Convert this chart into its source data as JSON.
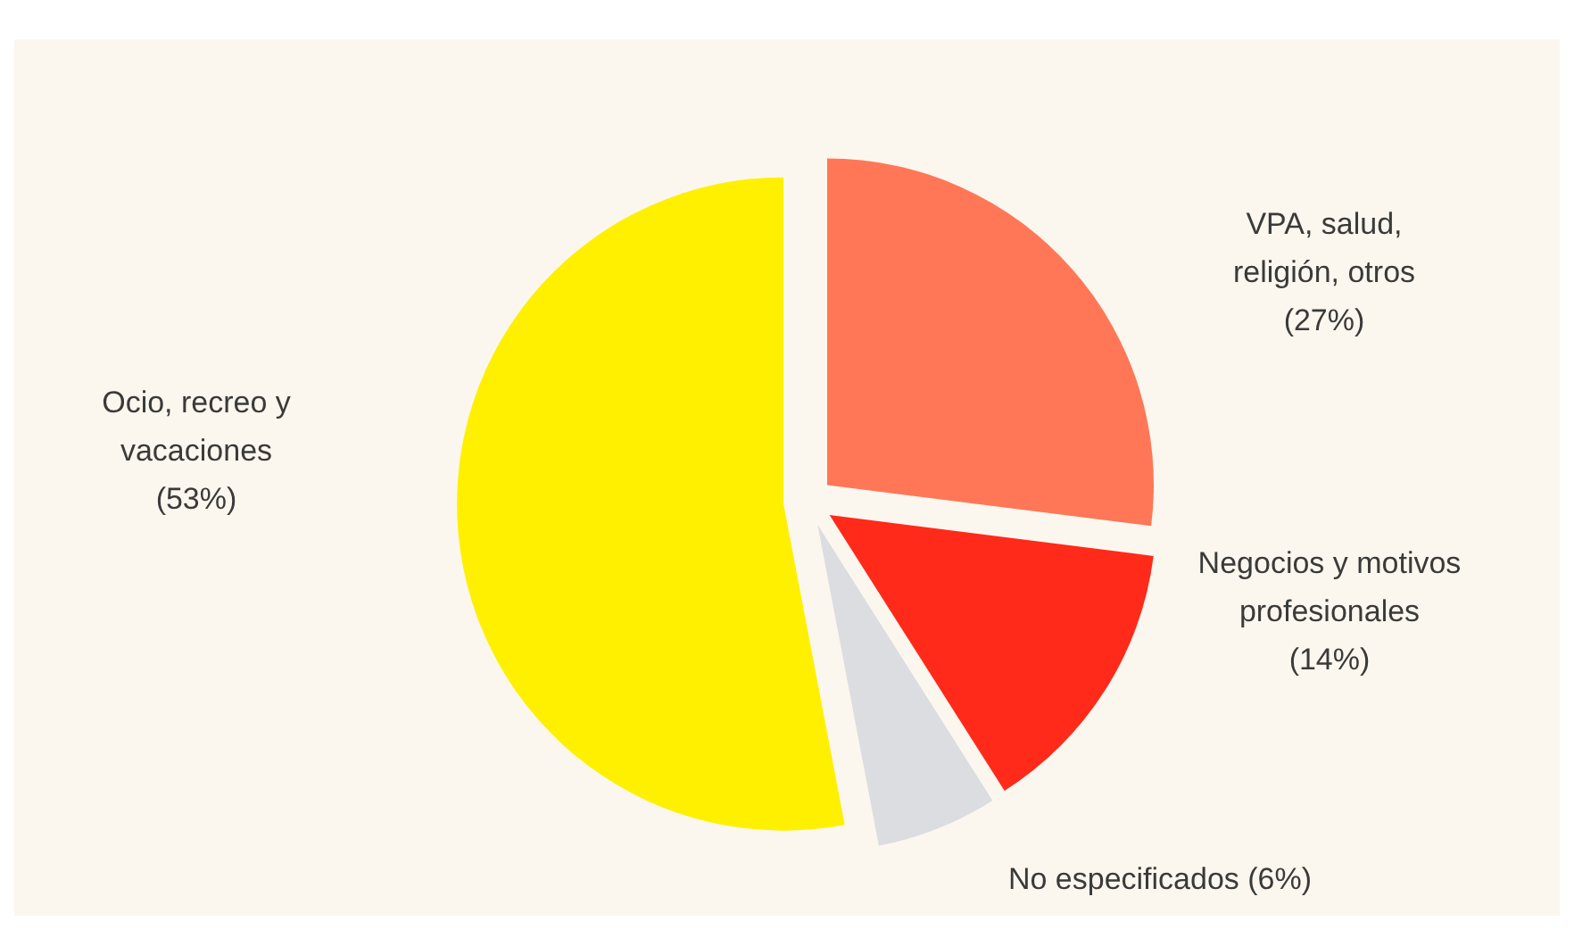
{
  "chart_data": {
    "type": "pie",
    "categories": [
      "VPA, salud, religión, otros",
      "Negocios y motivos profesionales",
      "No especificados",
      "Ocio, recreo y vacaciones"
    ],
    "values": [
      27,
      14,
      6,
      53
    ],
    "value_labels": [
      "(27%)",
      "(14%)",
      "(6%)",
      "(53%)"
    ],
    "colors": [
      "#ff7757",
      "#ff2a1a",
      "#dcdde1",
      "#fff000"
    ],
    "legend": false
  }
}
